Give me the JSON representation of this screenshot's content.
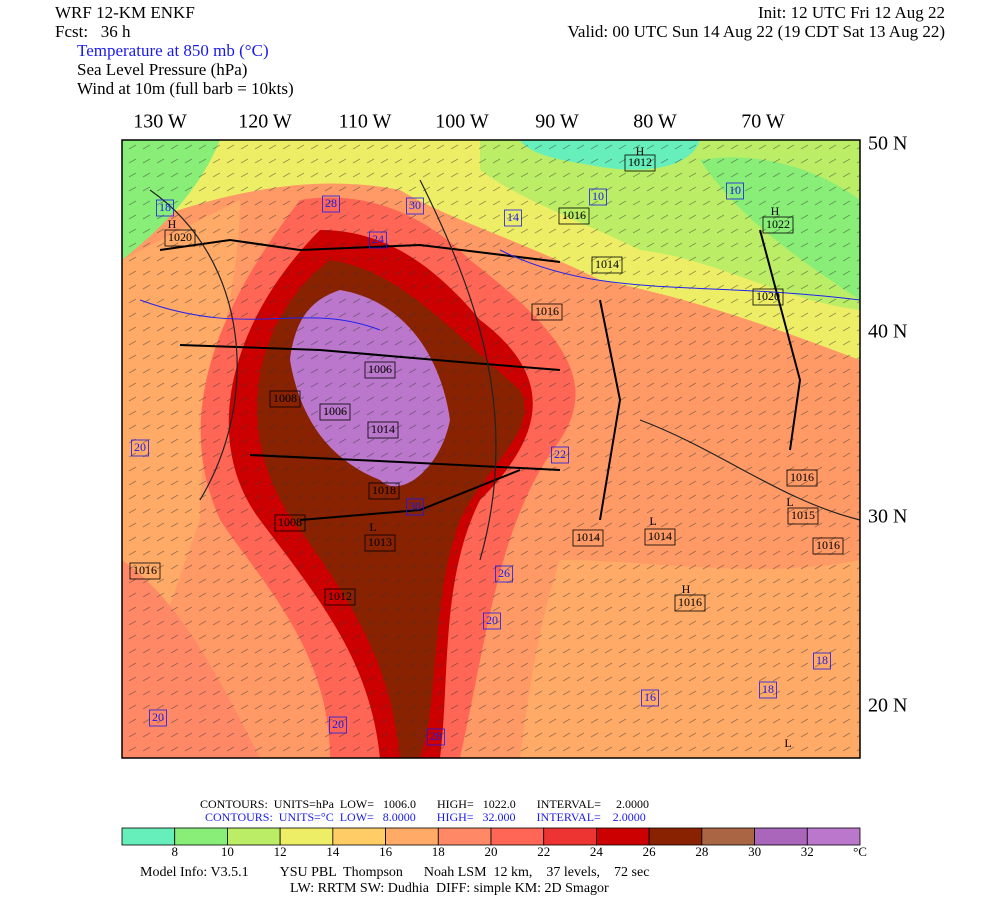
{
  "header": {
    "title": "WRF 12-KM ENKF",
    "forecast": "Fcst:   36 h",
    "init": "Init: 12 UTC Fri 12 Aug 22",
    "valid": "Valid: 00 UTC Sun 14 Aug 22 (19 CDT Sat 13 Aug 22)",
    "fields": [
      "Temperature at 850 mb (°C)",
      "Sea Level Pressure (hPa)",
      "Wind at 10m (full barb = 10kts)"
    ]
  },
  "map": {
    "lon_labels": [
      "130 W",
      "120 W",
      "110 W",
      "100 W",
      "90 W",
      "80 W",
      "70 W"
    ],
    "lat_labels": [
      "50 N",
      "40 N",
      "30 N",
      "20 N"
    ],
    "labels": [
      "1012",
      "10",
      "10",
      "1022",
      "1016",
      "28",
      "30",
      "14",
      "24",
      "18",
      "1020",
      "1014",
      "1020",
      "1016",
      "1006",
      "1008",
      "1014",
      "1006",
      "1018",
      "1008",
      "1013",
      "1014",
      "1014",
      "1016",
      "1015",
      "1016",
      "1016",
      "1016",
      "1012",
      "26",
      "20",
      "20",
      "20",
      "16",
      "18",
      "18",
      "20",
      "22",
      "30",
      "28",
      "H",
      "H",
      "H",
      "H",
      "L",
      "L",
      "L",
      "L"
    ]
  },
  "footer": {
    "pressure_contours": "CONTOURS:  UNITS=hPa  LOW=   1006.0       HIGH=   1022.0       INTERVAL=     2.0000",
    "temp_contours": "CONTOURS:  UNITS=°C  LOW=   8.0000       HIGH=   32.000       INTERVAL=    2.0000",
    "colorbar_labels": [
      "8",
      "10",
      "12",
      "14",
      "16",
      "18",
      "20",
      "22",
      "24",
      "26",
      "28",
      "30",
      "32",
      "°C"
    ],
    "model_info": "Model Info: V3.5.1         YSU PBL  Thompson      Noah LSM  12 km,    37 levels,    72 sec",
    "model_info2": "LW: RRTM SW: Dudhia  DIFF: simple KM: 2D Smagor"
  }
}
